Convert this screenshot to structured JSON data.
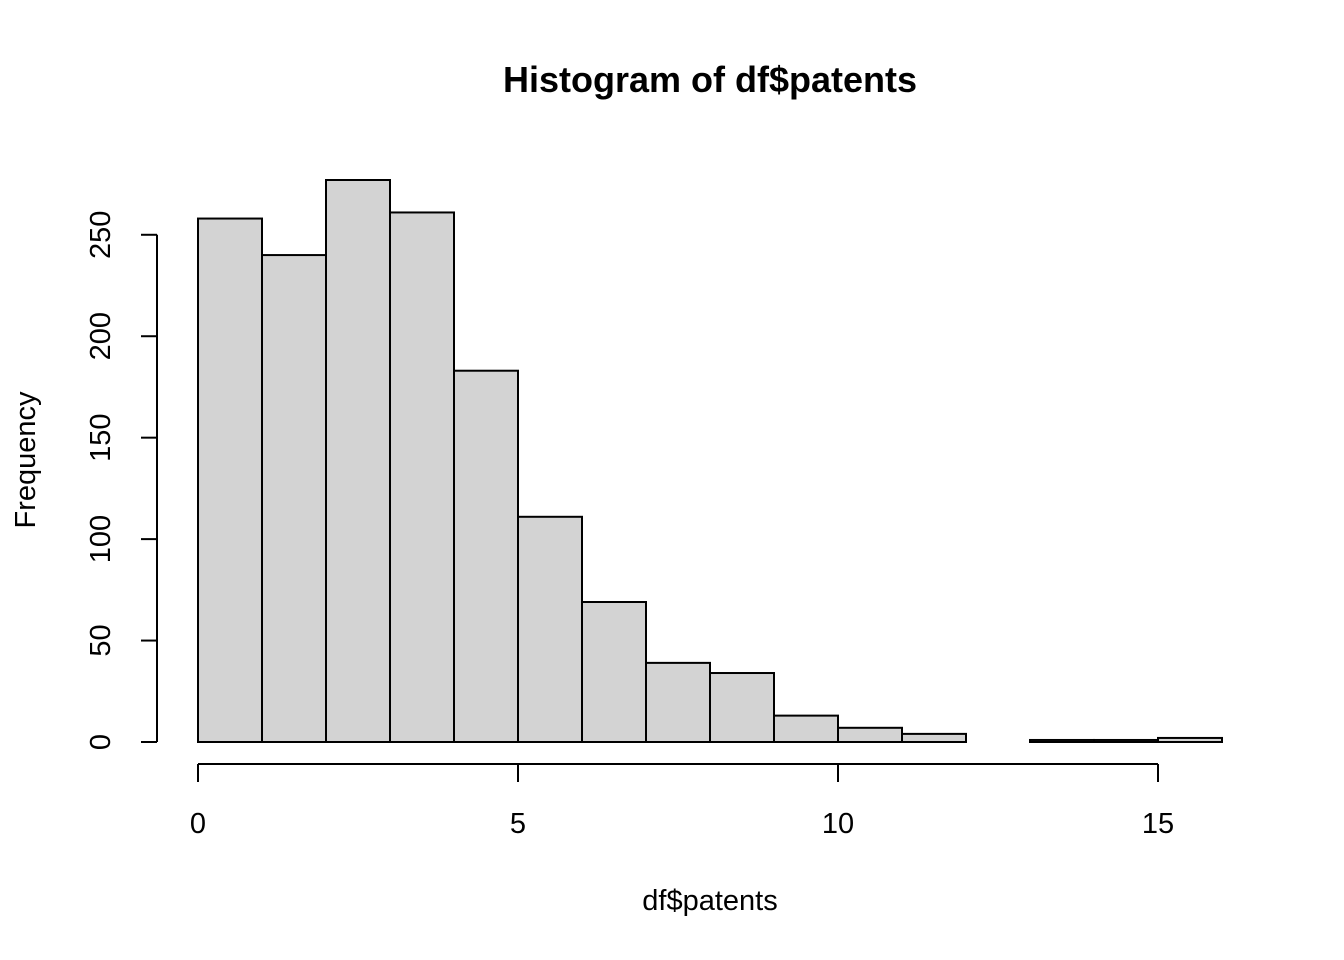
{
  "chart_data": {
    "type": "bar",
    "subtype": "histogram",
    "title": "Histogram of df$patents",
    "xlabel": "df$patents",
    "ylabel": "Frequency",
    "bins": [
      {
        "start": 0,
        "end": 1,
        "count": 258
      },
      {
        "start": 1,
        "end": 2,
        "count": 240
      },
      {
        "start": 2,
        "end": 3,
        "count": 277
      },
      {
        "start": 3,
        "end": 4,
        "count": 261
      },
      {
        "start": 4,
        "end": 5,
        "count": 183
      },
      {
        "start": 5,
        "end": 6,
        "count": 111
      },
      {
        "start": 6,
        "end": 7,
        "count": 69
      },
      {
        "start": 7,
        "end": 8,
        "count": 39
      },
      {
        "start": 8,
        "end": 9,
        "count": 34
      },
      {
        "start": 9,
        "end": 10,
        "count": 13
      },
      {
        "start": 10,
        "end": 11,
        "count": 7
      },
      {
        "start": 11,
        "end": 12,
        "count": 4
      },
      {
        "start": 12,
        "end": 13,
        "count": 0
      },
      {
        "start": 13,
        "end": 14,
        "count": 1
      },
      {
        "start": 14,
        "end": 15,
        "count": 1
      },
      {
        "start": 15,
        "end": 16,
        "count": 2
      }
    ],
    "xlim": [
      0,
      16
    ],
    "ylim": [
      0,
      277
    ],
    "x_ticks": [
      0,
      5,
      10,
      15
    ],
    "x_tick_labels": [
      "0",
      "5",
      "10",
      "15"
    ],
    "y_ticks": [
      0,
      50,
      100,
      150,
      200,
      250
    ],
    "y_tick_labels": [
      "0",
      "50",
      "100",
      "150",
      "200",
      "250"
    ],
    "bar_color": "#d3d3d3",
    "border_color": "#000000",
    "grid": false,
    "legend": "none"
  }
}
